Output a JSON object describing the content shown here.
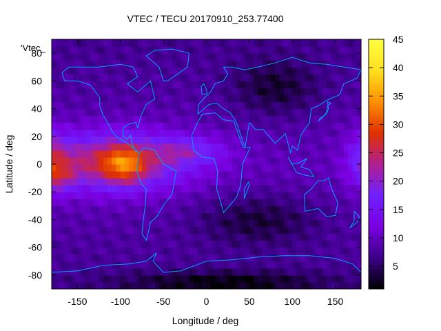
{
  "chart_data": {
    "type": "heatmap",
    "title": "VTEC / TECU 20170910_253.77400",
    "xlabel": "Longitude / deg",
    "ylabel": "Latitude / deg",
    "xlim": [
      -180,
      180
    ],
    "ylim": [
      -90,
      90
    ],
    "x_ticks": [
      -150,
      -100,
      -50,
      0,
      50,
      100,
      150
    ],
    "y_ticks": [
      -80,
      -60,
      -40,
      -20,
      0,
      20,
      40,
      60,
      80
    ],
    "colorbar": {
      "range": [
        1,
        45
      ],
      "ticks": [
        5,
        10,
        15,
        20,
        25,
        30,
        35,
        40,
        45
      ],
      "palette": [
        "#000000",
        "#3c0088",
        "#7a00e0",
        "#7020ff",
        "#b02090",
        "#e03000",
        "#ff9000",
        "#ffe020",
        "#ffff40"
      ]
    },
    "legend_label": "'Vtec_",
    "coastline_color": "#00a0ff",
    "grid": false
  }
}
